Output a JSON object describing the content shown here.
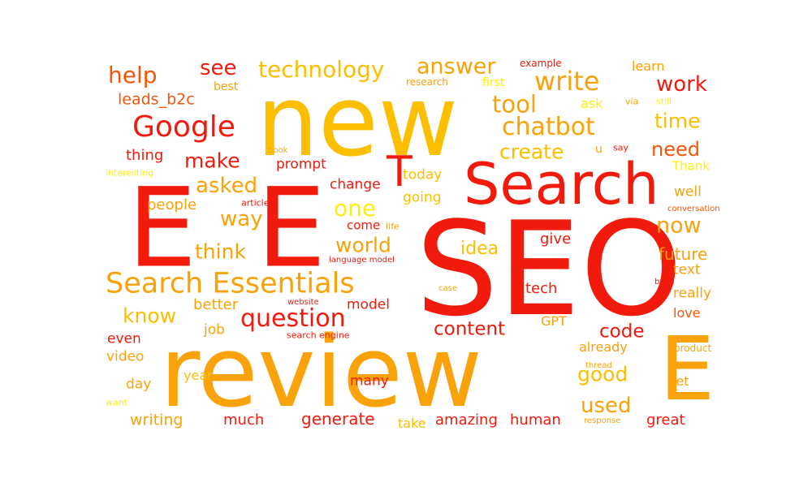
{
  "colors": {
    "red": "#f21a0c",
    "orange": "#f7550a",
    "amber": "#f9a20a",
    "gold": "#fbbf00",
    "yellow": "#ffee12"
  },
  "words": [
    {
      "text": "SEO",
      "weight": 1.0,
      "color": "red"
    },
    {
      "text": "new",
      "weight": 0.92,
      "color": "gold"
    },
    {
      "text": "review",
      "weight": 0.9,
      "color": "amber"
    },
    {
      "text": "E",
      "weight": 0.85,
      "color": "red"
    },
    {
      "text": "E",
      "weight": 0.85,
      "color": "red"
    },
    {
      "text": "E",
      "weight": 0.7,
      "color": "amber"
    },
    {
      "text": "Search",
      "weight": 0.55,
      "color": "red"
    },
    {
      "text": "T",
      "weight": 0.4,
      "color": "red"
    },
    {
      "text": "Search Essentials",
      "weight": 0.35,
      "color": "amber"
    },
    {
      "text": "Google",
      "weight": 0.3,
      "color": "red"
    },
    {
      "text": "write",
      "weight": 0.3,
      "color": "amber"
    },
    {
      "text": "technology",
      "weight": 0.25,
      "color": "gold"
    },
    {
      "text": "chatbot",
      "weight": 0.28,
      "color": "amber"
    },
    {
      "text": "question",
      "weight": 0.3,
      "color": "red"
    },
    {
      "text": "help",
      "weight": 0.25,
      "color": "orange"
    },
    {
      "text": "see",
      "weight": 0.25,
      "color": "red"
    },
    {
      "text": "answer",
      "weight": 0.25,
      "color": "amber"
    },
    {
      "text": "work",
      "weight": 0.22,
      "color": "red"
    },
    {
      "text": "tool",
      "weight": 0.25,
      "color": "amber"
    },
    {
      "text": "time",
      "weight": 0.23,
      "color": "gold"
    },
    {
      "text": "create",
      "weight": 0.22,
      "color": "gold"
    },
    {
      "text": "need",
      "weight": 0.2,
      "color": "orange"
    },
    {
      "text": "make",
      "weight": 0.22,
      "color": "red"
    },
    {
      "text": "asked",
      "weight": 0.22,
      "color": "amber"
    },
    {
      "text": "way",
      "weight": 0.22,
      "color": "amber"
    },
    {
      "text": "one",
      "weight": 0.25,
      "color": "yellow"
    },
    {
      "text": "now",
      "weight": 0.25,
      "color": "amber"
    },
    {
      "text": "think",
      "weight": 0.22,
      "color": "amber"
    },
    {
      "text": "world",
      "weight": 0.22,
      "color": "amber"
    },
    {
      "text": "idea",
      "weight": 0.2,
      "color": "gold"
    },
    {
      "text": "future",
      "weight": 0.18,
      "color": "amber"
    },
    {
      "text": "know",
      "weight": 0.22,
      "color": "gold"
    },
    {
      "text": "content",
      "weight": 0.22,
      "color": "red"
    },
    {
      "text": "code",
      "weight": 0.22,
      "color": "red"
    },
    {
      "text": "good",
      "weight": 0.22,
      "color": "gold"
    },
    {
      "text": "used",
      "weight": 0.22,
      "color": "amber"
    },
    {
      "text": "generate",
      "weight": 0.18,
      "color": "red"
    },
    {
      "text": "amazing",
      "weight": 0.17,
      "color": "red"
    },
    {
      "text": "human",
      "weight": 0.17,
      "color": "red"
    },
    {
      "text": "writing",
      "weight": 0.16,
      "color": "amber"
    },
    {
      "text": "much",
      "weight": 0.16,
      "color": "red"
    },
    {
      "text": "great",
      "weight": 0.16,
      "color": "red"
    },
    {
      "text": "leads_b2c",
      "weight": 0.15,
      "color": "orange"
    },
    {
      "text": "thing",
      "weight": 0.15,
      "color": "red"
    },
    {
      "text": "people",
      "weight": 0.15,
      "color": "amber"
    },
    {
      "text": "better",
      "weight": 0.14,
      "color": "amber"
    },
    {
      "text": "job",
      "weight": 0.14,
      "color": "amber"
    },
    {
      "text": "even",
      "weight": 0.14,
      "color": "red"
    },
    {
      "text": "video",
      "weight": 0.14,
      "color": "amber"
    },
    {
      "text": "day",
      "weight": 0.14,
      "color": "amber"
    },
    {
      "text": "year",
      "weight": 0.14,
      "color": "gold"
    },
    {
      "text": "many",
      "weight": 0.14,
      "color": "red"
    },
    {
      "text": "take",
      "weight": 0.14,
      "color": "gold"
    },
    {
      "text": "model",
      "weight": 0.14,
      "color": "red"
    },
    {
      "text": "change",
      "weight": 0.13,
      "color": "red"
    },
    {
      "text": "today",
      "weight": 0.14,
      "color": "gold"
    },
    {
      "text": "going",
      "weight": 0.14,
      "color": "gold"
    },
    {
      "text": "come",
      "weight": 0.12,
      "color": "red"
    },
    {
      "text": "give",
      "weight": 0.14,
      "color": "red"
    },
    {
      "text": "tech",
      "weight": 0.14,
      "color": "red"
    },
    {
      "text": "GPT",
      "weight": 0.12,
      "color": "amber"
    },
    {
      "text": "already",
      "weight": 0.13,
      "color": "amber"
    },
    {
      "text": "really",
      "weight": 0.14,
      "color": "amber"
    },
    {
      "text": "love",
      "weight": 0.14,
      "color": "orange"
    },
    {
      "text": "text",
      "weight": 0.14,
      "color": "amber"
    },
    {
      "text": "well",
      "weight": 0.14,
      "color": "amber"
    },
    {
      "text": "Thank",
      "weight": 0.13,
      "color": "yellow"
    },
    {
      "text": "let",
      "weight": 0.14,
      "color": "amber"
    },
    {
      "text": "prompt",
      "weight": 0.14,
      "color": "red"
    },
    {
      "text": "ask",
      "weight": 0.14,
      "color": "yellow"
    },
    {
      "text": "first",
      "weight": 0.12,
      "color": "yellow"
    },
    {
      "text": "learn",
      "weight": 0.12,
      "color": "amber"
    },
    {
      "text": "best",
      "weight": 0.1,
      "color": "amber"
    },
    {
      "text": "example",
      "weight": 0.09,
      "color": "red"
    },
    {
      "text": "research",
      "weight": 0.09,
      "color": "amber"
    },
    {
      "text": "via",
      "weight": 0.09,
      "color": "amber"
    },
    {
      "text": "still",
      "weight": 0.09,
      "color": "yellow"
    },
    {
      "text": "u",
      "weight": 0.1,
      "color": "amber"
    },
    {
      "text": "say",
      "weight": 0.08,
      "color": "red"
    },
    {
      "text": "book",
      "weight": 0.08,
      "color": "amber"
    },
    {
      "text": "interesting",
      "weight": 0.08,
      "color": "yellow"
    },
    {
      "text": "article",
      "weight": 0.08,
      "color": "red"
    },
    {
      "text": "life",
      "weight": 0.08,
      "color": "amber"
    },
    {
      "text": "language model",
      "weight": 0.08,
      "color": "red"
    },
    {
      "text": "case",
      "weight": 0.08,
      "color": "amber"
    },
    {
      "text": "website",
      "weight": 0.08,
      "color": "red"
    },
    {
      "text": "search engine",
      "weight": 0.09,
      "color": "red"
    },
    {
      "text": "conversation",
      "weight": 0.08,
      "color": "orange"
    },
    {
      "text": "build",
      "weight": 0.08,
      "color": "red"
    },
    {
      "text": "product",
      "weight": 0.09,
      "color": "amber"
    },
    {
      "text": "thread",
      "weight": 0.08,
      "color": "amber"
    },
    {
      "text": "response",
      "weight": 0.08,
      "color": "amber"
    },
    {
      "text": "want",
      "weight": 0.08,
      "color": "yellow"
    }
  ]
}
